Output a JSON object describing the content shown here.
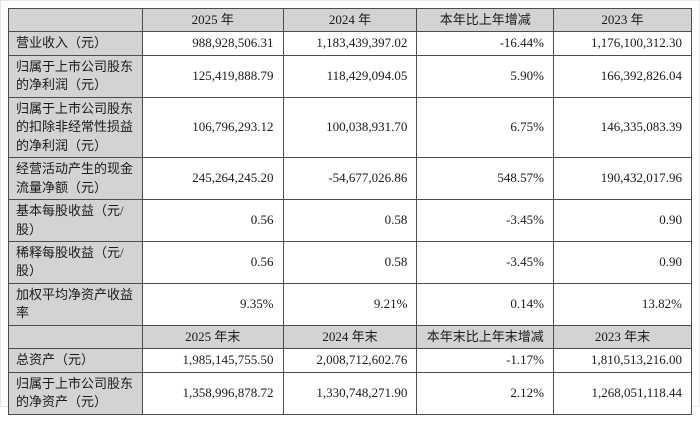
{
  "colors": {
    "header_bg": "#d3d3d3",
    "cell_bg": "#ffffff",
    "border": "#4d4d4d",
    "text": "#1a1a1a"
  },
  "table": {
    "section1": {
      "header": {
        "c0": "",
        "c1": "2025 年",
        "c2": "2024 年",
        "c3": "本年比上年增减",
        "c4": "2023 年"
      },
      "rows": [
        {
          "label": "营业收入（元）",
          "y2025": "988,928,506.31",
          "y2024": "1,183,439,397.02",
          "change": "-16.44%",
          "y2023": "1,176,100,312.30"
        },
        {
          "label": "归属于上市公司股东的净利润（元）",
          "y2025": "125,419,888.79",
          "y2024": "118,429,094.05",
          "change": "5.90%",
          "y2023": "166,392,826.04"
        },
        {
          "label": "归属于上市公司股东的扣除非经常性损益的净利润（元）",
          "y2025": "106,796,293.12",
          "y2024": "100,038,931.70",
          "change": "6.75%",
          "y2023": "146,335,083.39"
        },
        {
          "label": "经营活动产生的现金流量净额（元）",
          "y2025": "245,264,245.20",
          "y2024": "-54,677,026.86",
          "change": "548.57%",
          "y2023": "190,432,017.96"
        },
        {
          "label": "基本每股收益（元/股）",
          "y2025": "0.56",
          "y2024": "0.58",
          "change": "-3.45%",
          "y2023": "0.90"
        },
        {
          "label": "稀释每股收益（元/股）",
          "y2025": "0.56",
          "y2024": "0.58",
          "change": "-3.45%",
          "y2023": "0.90"
        },
        {
          "label": "加权平均净资产收益率",
          "y2025": "9.35%",
          "y2024": "9.21%",
          "change": "0.14%",
          "y2023": "13.82%"
        }
      ]
    },
    "section2": {
      "header": {
        "c0": "",
        "c1": "2025 年末",
        "c2": "2024 年末",
        "c3": "本年末比上年末增减",
        "c4": "2023 年末"
      },
      "rows": [
        {
          "label": "总资产（元）",
          "y2025": "1,985,145,755.50",
          "y2024": "2,008,712,602.76",
          "change": "-1.17%",
          "y2023": "1,810,513,216.00"
        },
        {
          "label": "归属于上市公司股东的净资产（元）",
          "y2025": "1,358,996,878.72",
          "y2024": "1,330,748,271.90",
          "change": "2.12%",
          "y2023": "1,268,051,118.44"
        }
      ]
    }
  }
}
